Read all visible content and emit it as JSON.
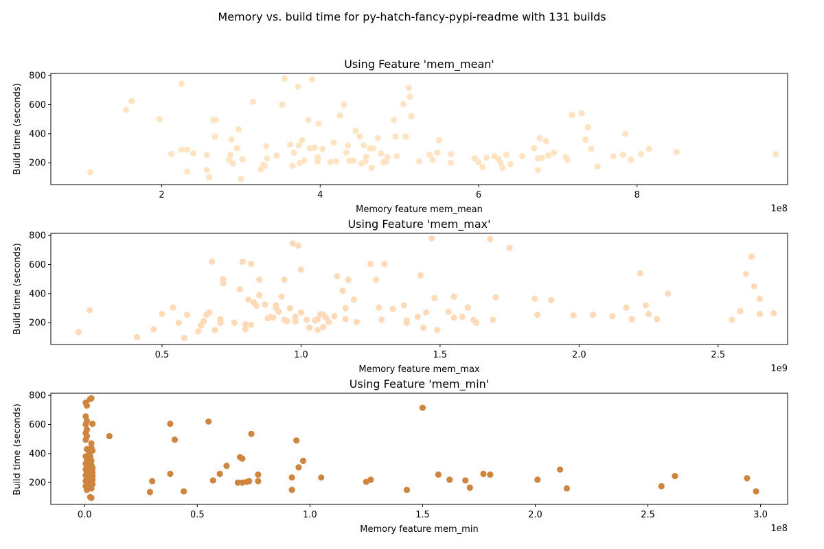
{
  "figure": {
    "suptitle": "Memory vs. build time for py-hatch-fancy-pypi-readme with 131 builds"
  },
  "chart_data": [
    {
      "type": "scatter",
      "title": "Using Feature 'mem_mean'",
      "xlabel": "Memory feature mem_mean",
      "ylabel": "Build time (seconds)",
      "x_offset_label": "1e8",
      "color": "#ffe4c4",
      "xlim": [
        0.6,
        9.9
      ],
      "ylim": [
        50,
        815
      ],
      "xticks": [
        2,
        4,
        6,
        8
      ],
      "xtick_labels": [
        "2",
        "4",
        "6",
        "8"
      ],
      "yticks": [
        200,
        400,
        600,
        800
      ],
      "ytick_labels": [
        "200",
        "400",
        "600",
        "800"
      ],
      "grid": false,
      "points": [
        [
          1.1,
          135
        ],
        [
          1.55,
          565
        ],
        [
          1.62,
          625
        ],
        [
          1.97,
          500
        ],
        [
          2.12,
          260
        ],
        [
          2.25,
          745
        ],
        [
          2.25,
          290
        ],
        [
          2.32,
          140
        ],
        [
          2.32,
          290
        ],
        [
          2.4,
          265
        ],
        [
          2.57,
          255
        ],
        [
          2.57,
          150
        ],
        [
          2.6,
          100
        ],
        [
          2.65,
          495
        ],
        [
          2.67,
          380
        ],
        [
          2.68,
          495
        ],
        [
          2.85,
          220
        ],
        [
          2.87,
          255
        ],
        [
          2.88,
          360
        ],
        [
          2.9,
          195
        ],
        [
          2.95,
          300
        ],
        [
          2.97,
          430
        ],
        [
          3.0,
          90
        ],
        [
          3.02,
          225
        ],
        [
          3.15,
          620
        ],
        [
          3.25,
          155
        ],
        [
          3.28,
          185
        ],
        [
          3.3,
          180
        ],
        [
          3.32,
          315
        ],
        [
          3.33,
          230
        ],
        [
          3.45,
          250
        ],
        [
          3.52,
          600
        ],
        [
          3.55,
          780
        ],
        [
          3.62,
          325
        ],
        [
          3.65,
          180
        ],
        [
          3.67,
          270
        ],
        [
          3.72,
          725
        ],
        [
          3.73,
          320
        ],
        [
          3.74,
          200
        ],
        [
          3.77,
          355
        ],
        [
          3.8,
          215
        ],
        [
          3.85,
          495
        ],
        [
          3.87,
          300
        ],
        [
          3.9,
          775
        ],
        [
          3.93,
          305
        ],
        [
          3.97,
          210
        ],
        [
          3.97,
          240
        ],
        [
          3.98,
          470
        ],
        [
          4.03,
          295
        ],
        [
          4.13,
          205
        ],
        [
          4.17,
          340
        ],
        [
          4.2,
          210
        ],
        [
          4.25,
          525
        ],
        [
          4.3,
          600
        ],
        [
          4.33,
          270
        ],
        [
          4.35,
          320
        ],
        [
          4.37,
          215
        ],
        [
          4.42,
          215
        ],
        [
          4.45,
          420
        ],
        [
          4.5,
          380
        ],
        [
          4.52,
          195
        ],
        [
          4.55,
          320
        ],
        [
          4.57,
          210
        ],
        [
          4.58,
          240
        ],
        [
          4.63,
          300
        ],
        [
          4.65,
          165
        ],
        [
          4.67,
          300
        ],
        [
          4.73,
          370
        ],
        [
          4.77,
          265
        ],
        [
          4.8,
          205
        ],
        [
          4.83,
          210
        ],
        [
          4.85,
          240
        ],
        [
          4.93,
          495
        ],
        [
          4.95,
          380
        ],
        [
          4.97,
          245
        ],
        [
          5.05,
          605
        ],
        [
          5.08,
          380
        ],
        [
          5.12,
          715
        ],
        [
          5.13,
          655
        ],
        [
          5.15,
          520
        ],
        [
          5.25,
          210
        ],
        [
          5.38,
          255
        ],
        [
          5.42,
          220
        ],
        [
          5.48,
          270
        ],
        [
          5.5,
          355
        ],
        [
          5.65,
          260
        ],
        [
          5.65,
          200
        ],
        [
          5.95,
          230
        ],
        [
          6.0,
          205
        ],
        [
          6.05,
          170
        ],
        [
          6.1,
          235
        ],
        [
          6.2,
          245
        ],
        [
          6.25,
          225
        ],
        [
          6.28,
          200
        ],
        [
          6.3,
          165
        ],
        [
          6.35,
          255
        ],
        [
          6.4,
          190
        ],
        [
          6.55,
          245
        ],
        [
          6.7,
          300
        ],
        [
          6.75,
          230
        ],
        [
          6.75,
          150
        ],
        [
          6.77,
          370
        ],
        [
          6.8,
          235
        ],
        [
          6.85,
          350
        ],
        [
          6.88,
          250
        ],
        [
          6.95,
          270
        ],
        [
          7.1,
          240
        ],
        [
          7.12,
          220
        ],
        [
          7.18,
          530
        ],
        [
          7.3,
          540
        ],
        [
          7.35,
          360
        ],
        [
          7.38,
          445
        ],
        [
          7.42,
          295
        ],
        [
          7.5,
          175
        ],
        [
          7.7,
          245
        ],
        [
          7.82,
          255
        ],
        [
          7.85,
          400
        ],
        [
          7.92,
          220
        ],
        [
          8.05,
          260
        ],
        [
          8.15,
          295
        ],
        [
          8.5,
          275
        ],
        [
          9.75,
          260
        ]
      ]
    },
    {
      "type": "scatter",
      "title": "Using Feature 'mem_max'",
      "xlabel": "Memory feature mem_max",
      "ylabel": "Build time (seconds)",
      "x_offset_label": "1e9",
      "color": "#ffdab9",
      "xlim": [
        0.1,
        2.75
      ],
      "ylim": [
        50,
        815
      ],
      "xticks": [
        0.5,
        1.0,
        1.5,
        2.0,
        2.5
      ],
      "xtick_labels": [
        "0.5",
        "1.0",
        "1.5",
        "2.0",
        "2.5"
      ],
      "yticks": [
        200,
        400,
        600,
        800
      ],
      "ytick_labels": [
        "200",
        "400",
        "600",
        "800"
      ],
      "grid": false,
      "points": [
        [
          0.2,
          135
        ],
        [
          0.24,
          285
        ],
        [
          0.41,
          100
        ],
        [
          0.47,
          155
        ],
        [
          0.5,
          260
        ],
        [
          0.54,
          305
        ],
        [
          0.56,
          200
        ],
        [
          0.58,
          95
        ],
        [
          0.59,
          255
        ],
        [
          0.63,
          140
        ],
        [
          0.64,
          180
        ],
        [
          0.65,
          210
        ],
        [
          0.66,
          255
        ],
        [
          0.67,
          270
        ],
        [
          0.68,
          620
        ],
        [
          0.69,
          150
        ],
        [
          0.71,
          200
        ],
        [
          0.71,
          225
        ],
        [
          0.72,
          470
        ],
        [
          0.72,
          500
        ],
        [
          0.76,
          200
        ],
        [
          0.78,
          430
        ],
        [
          0.79,
          620
        ],
        [
          0.8,
          155
        ],
        [
          0.8,
          190
        ],
        [
          0.81,
          360
        ],
        [
          0.82,
          605
        ],
        [
          0.82,
          185
        ],
        [
          0.83,
          340
        ],
        [
          0.84,
          315
        ],
        [
          0.85,
          390
        ],
        [
          0.85,
          495
        ],
        [
          0.87,
          325
        ],
        [
          0.88,
          230
        ],
        [
          0.89,
          240
        ],
        [
          0.9,
          235
        ],
        [
          0.91,
          300
        ],
        [
          0.91,
          320
        ],
        [
          0.92,
          275
        ],
        [
          0.93,
          380
        ],
        [
          0.94,
          220
        ],
        [
          0.94,
          495
        ],
        [
          0.95,
          210
        ],
        [
          0.96,
          300
        ],
        [
          0.97,
          745
        ],
        [
          0.98,
          240
        ],
        [
          0.98,
          210
        ],
        [
          0.99,
          730
        ],
        [
          1.0,
          270
        ],
        [
          1.0,
          565
        ],
        [
          1.02,
          220
        ],
        [
          1.03,
          165
        ],
        [
          1.05,
          215
        ],
        [
          1.06,
          150
        ],
        [
          1.06,
          225
        ],
        [
          1.07,
          260
        ],
        [
          1.08,
          170
        ],
        [
          1.08,
          255
        ],
        [
          1.09,
          235
        ],
        [
          1.1,
          205
        ],
        [
          1.12,
          245
        ],
        [
          1.13,
          520
        ],
        [
          1.15,
          420
        ],
        [
          1.16,
          300
        ],
        [
          1.16,
          225
        ],
        [
          1.17,
          495
        ],
        [
          1.19,
          360
        ],
        [
          1.2,
          205
        ],
        [
          1.25,
          605
        ],
        [
          1.27,
          495
        ],
        [
          1.28,
          305
        ],
        [
          1.29,
          220
        ],
        [
          1.3,
          605
        ],
        [
          1.33,
          295
        ],
        [
          1.37,
          320
        ],
        [
          1.38,
          215
        ],
        [
          1.38,
          200
        ],
        [
          1.42,
          240
        ],
        [
          1.43,
          525
        ],
        [
          1.44,
          165
        ],
        [
          1.45,
          270
        ],
        [
          1.47,
          780
        ],
        [
          1.48,
          370
        ],
        [
          1.49,
          150
        ],
        [
          1.53,
          275
        ],
        [
          1.55,
          235
        ],
        [
          1.55,
          380
        ],
        [
          1.58,
          240
        ],
        [
          1.6,
          305
        ],
        [
          1.62,
          220
        ],
        [
          1.63,
          200
        ],
        [
          1.68,
          775
        ],
        [
          1.69,
          220
        ],
        [
          1.7,
          375
        ],
        [
          1.75,
          715
        ],
        [
          1.84,
          365
        ],
        [
          1.85,
          255
        ],
        [
          1.9,
          355
        ],
        [
          1.98,
          250
        ],
        [
          2.05,
          255
        ],
        [
          2.12,
          245
        ],
        [
          2.17,
          305
        ],
        [
          2.19,
          225
        ],
        [
          2.22,
          540
        ],
        [
          2.24,
          320
        ],
        [
          2.25,
          260
        ],
        [
          2.28,
          225
        ],
        [
          2.32,
          400
        ],
        [
          2.55,
          220
        ],
        [
          2.58,
          280
        ],
        [
          2.6,
          535
        ],
        [
          2.62,
          655
        ],
        [
          2.63,
          450
        ],
        [
          2.65,
          365
        ],
        [
          2.65,
          260
        ],
        [
          2.7,
          265
        ]
      ]
    },
    {
      "type": "scatter",
      "title": "Using Feature 'mem_min'",
      "xlabel": "Memory feature mem_min",
      "ylabel": "Build time (seconds)",
      "x_offset_label": "1e8",
      "color": "#cd853f",
      "xlim": [
        -0.15,
        3.12
      ],
      "ylim": [
        50,
        815
      ],
      "xticks": [
        0.0,
        0.5,
        1.0,
        1.5,
        2.0,
        2.5,
        3.0
      ],
      "xtick_labels": [
        "0.0",
        "0.5",
        "1.0",
        "1.5",
        "2.0",
        "2.5",
        "3.0"
      ],
      "yticks": [
        200,
        400,
        600,
        800
      ],
      "ytick_labels": [
        "200",
        "400",
        "600",
        "800"
      ],
      "grid": false,
      "points": [
        [
          0.005,
          750
        ],
        [
          0.01,
          730
        ],
        [
          0.005,
          655
        ],
        [
          0.01,
          625
        ],
        [
          0.005,
          600
        ],
        [
          0.01,
          565
        ],
        [
          0.005,
          540
        ],
        [
          0.01,
          520
        ],
        [
          0.005,
          495
        ],
        [
          0.01,
          430
        ],
        [
          0.005,
          380
        ],
        [
          0.01,
          360
        ],
        [
          0.005,
          330
        ],
        [
          0.01,
          310
        ],
        [
          0.005,
          290
        ],
        [
          0.01,
          270
        ],
        [
          0.005,
          250
        ],
        [
          0.01,
          230
        ],
        [
          0.005,
          210
        ],
        [
          0.01,
          190
        ],
        [
          0.005,
          175
        ],
        [
          0.01,
          150
        ],
        [
          0.02,
          400
        ],
        [
          0.02,
          340
        ],
        [
          0.02,
          300
        ],
        [
          0.02,
          260
        ],
        [
          0.02,
          220
        ],
        [
          0.02,
          200
        ],
        [
          0.02,
          170
        ],
        [
          0.025,
          775
        ],
        [
          0.03,
          780
        ],
        [
          0.03,
          470
        ],
        [
          0.03,
          440
        ],
        [
          0.025,
          380
        ],
        [
          0.03,
          350
        ],
        [
          0.03,
          320
        ],
        [
          0.025,
          290
        ],
        [
          0.03,
          255
        ],
        [
          0.025,
          235
        ],
        [
          0.03,
          215
        ],
        [
          0.025,
          195
        ],
        [
          0.03,
          160
        ],
        [
          0.025,
          100
        ],
        [
          0.03,
          95
        ],
        [
          0.035,
          605
        ],
        [
          0.035,
          420
        ],
        [
          0.035,
          300
        ],
        [
          0.035,
          270
        ],
        [
          0.035,
          245
        ],
        [
          0.035,
          220
        ],
        [
          0.035,
          190
        ],
        [
          0.11,
          520
        ],
        [
          0.29,
          135
        ],
        [
          0.3,
          210
        ],
        [
          0.38,
          605
        ],
        [
          0.38,
          260
        ],
        [
          0.4,
          495
        ],
        [
          0.44,
          140
        ],
        [
          0.55,
          620
        ],
        [
          0.57,
          215
        ],
        [
          0.6,
          260
        ],
        [
          0.63,
          315
        ],
        [
          0.68,
          200
        ],
        [
          0.69,
          375
        ],
        [
          0.7,
          365
        ],
        [
          0.7,
          200
        ],
        [
          0.72,
          205
        ],
        [
          0.73,
          210
        ],
        [
          0.74,
          535
        ],
        [
          0.77,
          210
        ],
        [
          0.77,
          255
        ],
        [
          0.92,
          150
        ],
        [
          0.92,
          235
        ],
        [
          0.94,
          490
        ],
        [
          0.95,
          305
        ],
        [
          0.97,
          350
        ],
        [
          1.05,
          235
        ],
        [
          1.25,
          205
        ],
        [
          1.27,
          220
        ],
        [
          1.43,
          150
        ],
        [
          1.5,
          715
        ],
        [
          1.57,
          255
        ],
        [
          1.62,
          220
        ],
        [
          1.69,
          215
        ],
        [
          1.71,
          165
        ],
        [
          1.77,
          260
        ],
        [
          1.8,
          255
        ],
        [
          2.01,
          220
        ],
        [
          2.11,
          290
        ],
        [
          2.14,
          160
        ],
        [
          2.56,
          175
        ],
        [
          2.62,
          245
        ],
        [
          2.94,
          230
        ],
        [
          2.98,
          140
        ]
      ]
    }
  ]
}
